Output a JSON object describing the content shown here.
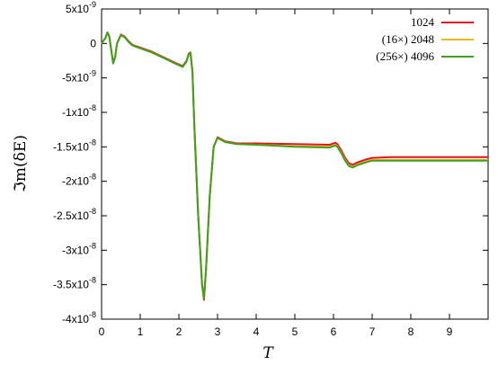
{
  "chart_data": {
    "type": "line",
    "title": "",
    "xlabel": "T",
    "ylabel": "ℑm(δE)",
    "xlim": [
      0,
      10
    ],
    "ylim": [
      -4e-08,
      5e-09
    ],
    "grid": false,
    "legend_position": "top-right",
    "x_ticks": [
      {
        "value": 0,
        "label": "0"
      },
      {
        "value": 1,
        "label": "1"
      },
      {
        "value": 2,
        "label": "2"
      },
      {
        "value": 3,
        "label": "3"
      },
      {
        "value": 4,
        "label": "4"
      },
      {
        "value": 5,
        "label": "5"
      },
      {
        "value": 6,
        "label": "6"
      },
      {
        "value": 7,
        "label": "7"
      },
      {
        "value": 8,
        "label": "8"
      },
      {
        "value": 9,
        "label": "9"
      }
    ],
    "y_ticks": [
      {
        "value": 5e-09,
        "mant": "5x10",
        "exp": "-9"
      },
      {
        "value": 0,
        "mant": "0",
        "exp": ""
      },
      {
        "value": -5e-09,
        "mant": "-5x10",
        "exp": "-9"
      },
      {
        "value": -1e-08,
        "mant": "-1x10",
        "exp": "-8"
      },
      {
        "value": -1.5e-08,
        "mant": "-1.5x10",
        "exp": "-8"
      },
      {
        "value": -2e-08,
        "mant": "-2x10",
        "exp": "-8"
      },
      {
        "value": -2.5e-08,
        "mant": "-2.5x10",
        "exp": "-8"
      },
      {
        "value": -3e-08,
        "mant": "-3x10",
        "exp": "-8"
      },
      {
        "value": -3.5e-08,
        "mant": "-3.5x10",
        "exp": "-8"
      },
      {
        "value": -4e-08,
        "mant": "-4x10",
        "exp": "-8"
      }
    ],
    "series": [
      {
        "name": "1024",
        "color": "#e8111b",
        "x": [
          0,
          0.1,
          0.15,
          0.2,
          0.25,
          0.3,
          0.35,
          0.4,
          0.5,
          0.6,
          0.7,
          0.8,
          1.0,
          1.3,
          1.6,
          1.9,
          2.1,
          2.2,
          2.25,
          2.3,
          2.35,
          2.4,
          2.5,
          2.6,
          2.65,
          2.7,
          2.8,
          2.9,
          3.0,
          3.2,
          3.5,
          4.0,
          5.0,
          5.9,
          6.0,
          6.05,
          6.1,
          6.2,
          6.3,
          6.4,
          6.5,
          6.6,
          6.8,
          7.0,
          7.5,
          8.0,
          9.0,
          10.0
        ],
        "y": [
          0,
          8e-10,
          1.6e-09,
          1e-09,
          -1e-09,
          -2.8e-09,
          -1.9e-09,
          0.0,
          1.3e-09,
          1e-09,
          3e-10,
          -2e-10,
          -6e-10,
          -1.2e-09,
          -2e-09,
          -2.8e-09,
          -3.3e-09,
          -2.5e-09,
          -1.5e-09,
          -1.3e-09,
          -4e-09,
          -1.2e-08,
          -2.5e-08,
          -3.5e-08,
          -3.72e-08,
          -3.3e-08,
          -2.2e-08,
          -1.5e-08,
          -1.36e-08,
          -1.42e-08,
          -1.45e-08,
          -1.45e-08,
          -1.46e-08,
          -1.47e-08,
          -1.45e-08,
          -1.44e-08,
          -1.46e-08,
          -1.55e-08,
          -1.66e-08,
          -1.74e-08,
          -1.76e-08,
          -1.73e-08,
          -1.69e-08,
          -1.66e-08,
          -1.65e-08,
          -1.65e-08,
          -1.65e-08,
          -1.65e-08
        ]
      },
      {
        "name": "(16×) 2048",
        "color": "#f5b512",
        "x": [
          0,
          0.1,
          0.15,
          0.2,
          0.25,
          0.3,
          0.35,
          0.4,
          0.5,
          0.6,
          0.7,
          0.8,
          1.0,
          1.3,
          1.6,
          1.9,
          2.1,
          2.2,
          2.25,
          2.3,
          2.35,
          2.4,
          2.5,
          2.6,
          2.65,
          2.7,
          2.8,
          2.9,
          3.0,
          3.2,
          3.5,
          4.0,
          5.0,
          5.9,
          6.0,
          6.05,
          6.1,
          6.2,
          6.3,
          6.4,
          6.5,
          6.6,
          6.8,
          7.0,
          7.5,
          8.0,
          9.0,
          10.0
        ],
        "y": [
          0,
          8e-10,
          1.6e-09,
          1e-09,
          -1e-09,
          -2.9e-09,
          -2e-09,
          0.0,
          1.2e-09,
          9e-10,
          2e-10,
          -3e-10,
          -7e-10,
          -1.3e-09,
          -2.1e-09,
          -2.9e-09,
          -3.4e-09,
          -2.6e-09,
          -1.6e-09,
          -1.4e-09,
          -4.1e-09,
          -1.2e-08,
          -2.5e-08,
          -3.5e-08,
          -3.7e-08,
          -3.3e-08,
          -2.2e-08,
          -1.5e-08,
          -1.37e-08,
          -1.43e-08,
          -1.46e-08,
          -1.47e-08,
          -1.49e-08,
          -1.5e-08,
          -1.48e-08,
          -1.47e-08,
          -1.49e-08,
          -1.58e-08,
          -1.69e-08,
          -1.77e-08,
          -1.79e-08,
          -1.76e-08,
          -1.72e-08,
          -1.69e-08,
          -1.69e-08,
          -1.69e-08,
          -1.69e-08,
          -1.69e-08
        ]
      },
      {
        "name": "(256×) 4096",
        "color": "#3ca11e",
        "x": [
          0,
          0.1,
          0.15,
          0.2,
          0.25,
          0.3,
          0.35,
          0.4,
          0.5,
          0.6,
          0.7,
          0.8,
          1.0,
          1.3,
          1.6,
          1.9,
          2.1,
          2.2,
          2.25,
          2.3,
          2.35,
          2.4,
          2.5,
          2.6,
          2.65,
          2.7,
          2.8,
          2.9,
          3.0,
          3.2,
          3.5,
          4.0,
          5.0,
          5.9,
          6.0,
          6.05,
          6.1,
          6.2,
          6.3,
          6.4,
          6.5,
          6.6,
          6.8,
          7.0,
          7.5,
          8.0,
          9.0,
          10.0
        ],
        "y": [
          0,
          8e-10,
          1.6e-09,
          1e-09,
          -1e-09,
          -2.9e-09,
          -2e-09,
          0.0,
          1.2e-09,
          9e-10,
          2e-10,
          -3e-10,
          -7e-10,
          -1.3e-09,
          -2.1e-09,
          -2.9e-09,
          -3.4e-09,
          -2.6e-09,
          -1.6e-09,
          -1.4e-09,
          -4.1e-09,
          -1.2e-08,
          -2.5e-08,
          -3.5e-08,
          -3.7e-08,
          -3.3e-08,
          -2.2e-08,
          -1.5e-08,
          -1.37e-08,
          -1.43e-08,
          -1.46e-08,
          -1.47e-08,
          -1.5e-08,
          -1.51e-08,
          -1.49e-08,
          -1.48e-08,
          -1.5e-08,
          -1.59e-08,
          -1.7e-08,
          -1.78e-08,
          -1.8e-08,
          -1.77e-08,
          -1.73e-08,
          -1.7e-08,
          -1.7e-08,
          -1.7e-08,
          -1.7e-08,
          -1.7e-08
        ]
      }
    ]
  }
}
